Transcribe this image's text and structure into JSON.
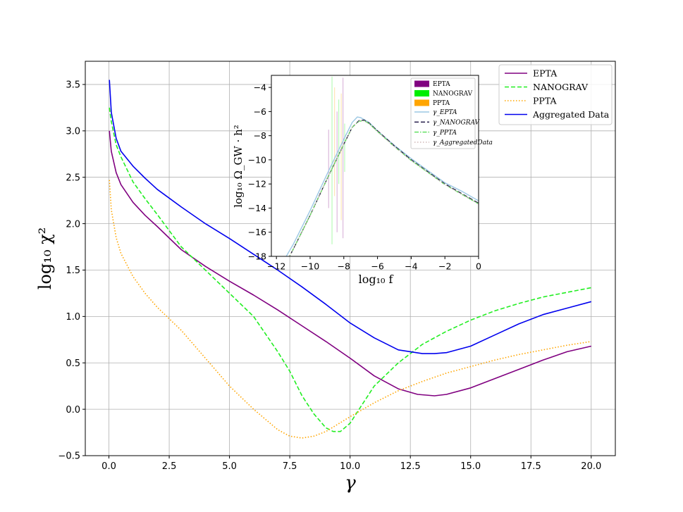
{
  "chart_data": [
    {
      "type": "line",
      "xlabel": "γ",
      "ylabel": "log₁₀ χ²",
      "xlim": [
        -0.98,
        21
      ],
      "ylim": [
        -0.5,
        3.75
      ],
      "xticks": [
        "0.0",
        "2.5",
        "5.0",
        "7.5",
        "10.0",
        "12.5",
        "15.0",
        "17.5",
        "20.0"
      ],
      "yticks": [
        "−0.5",
        "0.0",
        "0.5",
        "1.0",
        "1.5",
        "2.0",
        "2.5",
        "3.0",
        "3.5"
      ],
      "grid": true,
      "legend_position": "top-right",
      "series": [
        {
          "name": "EPTA",
          "color": "#800080",
          "dash": "solid",
          "x": [
            0.02,
            0.1,
            0.3,
            0.5,
            1,
            1.5,
            2,
            3,
            4,
            5,
            6,
            7,
            8,
            9,
            10,
            11,
            12,
            12.8,
            13.5,
            14,
            15,
            16,
            17,
            18,
            19,
            20
          ],
          "y": [
            3.0,
            2.78,
            2.55,
            2.42,
            2.23,
            2.09,
            1.97,
            1.72,
            1.54,
            1.38,
            1.23,
            1.07,
            0.9,
            0.73,
            0.55,
            0.36,
            0.22,
            0.16,
            0.145,
            0.16,
            0.23,
            0.33,
            0.43,
            0.53,
            0.62,
            0.68
          ]
        },
        {
          "name": "NANOGRAV",
          "color": "#22ee22",
          "dash": "dashed",
          "x": [
            0.02,
            0.1,
            0.3,
            0.5,
            1,
            1.5,
            2,
            3,
            4,
            5,
            6,
            7,
            7.5,
            8,
            8.5,
            9,
            9.3,
            9.6,
            10,
            10.5,
            11,
            12,
            13,
            14,
            15,
            16,
            17,
            18,
            19,
            20
          ],
          "y": [
            3.25,
            3.1,
            2.85,
            2.72,
            2.45,
            2.27,
            2.1,
            1.75,
            1.5,
            1.25,
            1.0,
            0.62,
            0.41,
            0.15,
            -0.05,
            -0.2,
            -0.24,
            -0.24,
            -0.15,
            0.05,
            0.25,
            0.5,
            0.7,
            0.84,
            0.96,
            1.06,
            1.14,
            1.21,
            1.26,
            1.31
          ]
        },
        {
          "name": "PPTA",
          "color": "#ffa500",
          "dash": "dotted",
          "x": [
            0.02,
            0.1,
            0.3,
            0.5,
            1,
            1.5,
            2,
            3,
            4,
            5,
            6,
            7,
            7.5,
            8,
            8.5,
            9,
            10,
            11,
            12,
            13,
            14,
            15,
            16,
            17,
            18,
            19,
            20
          ],
          "y": [
            2.47,
            2.15,
            1.85,
            1.68,
            1.43,
            1.25,
            1.1,
            0.85,
            0.55,
            0.25,
            0.0,
            -0.22,
            -0.29,
            -0.31,
            -0.29,
            -0.24,
            -0.08,
            0.07,
            0.2,
            0.3,
            0.39,
            0.46,
            0.53,
            0.59,
            0.64,
            0.69,
            0.73
          ]
        },
        {
          "name": "Aggregated Data",
          "color": "#0000ee",
          "dash": "solid",
          "x": [
            0.02,
            0.1,
            0.3,
            0.5,
            1,
            1.5,
            2,
            3,
            4,
            5,
            6,
            7,
            8,
            9,
            10,
            11,
            12,
            13,
            13.5,
            14,
            15,
            16,
            17,
            18,
            19,
            20
          ],
          "y": [
            3.55,
            3.2,
            2.92,
            2.78,
            2.62,
            2.49,
            2.37,
            2.18,
            2.0,
            1.84,
            1.67,
            1.5,
            1.32,
            1.13,
            0.93,
            0.77,
            0.64,
            0.6,
            0.6,
            0.61,
            0.68,
            0.8,
            0.92,
            1.02,
            1.09,
            1.16
          ]
        }
      ]
    },
    {
      "type": "line",
      "xlabel": "log₁₀ f",
      "ylabel": "log₁₀ Ω_GW · h²",
      "xlim": [
        -12.3,
        0
      ],
      "ylim": [
        -18,
        -3
      ],
      "xticks": [
        "−12",
        "−10",
        "−8",
        "−6",
        "−4",
        "−2",
        "0"
      ],
      "yticks": [
        "−18",
        "−16",
        "−14",
        "−12",
        "−10",
        "−8",
        "−6",
        "−4"
      ],
      "grid": false,
      "legend_position": "top-right",
      "bands": [
        {
          "name": "EPTA",
          "color": "#800080"
        },
        {
          "name": "NANOGRAV",
          "color": "#00ee00"
        },
        {
          "name": "PPTA",
          "color": "#ffa500"
        }
      ],
      "series": [
        {
          "name": "γ_EPTA",
          "color": "#9cc8e4",
          "dash": "solid",
          "x": [
            -11.5,
            -11,
            -10,
            -9,
            -8,
            -7.5,
            -7.2,
            -7,
            -6.5,
            -6,
            -5,
            -4,
            -3,
            -2,
            -1,
            0
          ],
          "y": [
            -18.2,
            -17.0,
            -14.2,
            -11.2,
            -8.3,
            -6.9,
            -6.45,
            -6.5,
            -6.9,
            -7.6,
            -8.8,
            -9.9,
            -10.9,
            -11.9,
            -12.6,
            -13.4
          ]
        },
        {
          "name": "γ_NANOGRAV",
          "color": "#1a1040",
          "dash": "dashed",
          "x": [
            -11.3,
            -11,
            -10,
            -9,
            -8,
            -7.5,
            -7.1,
            -6.8,
            -6.5,
            -6,
            -5,
            -4,
            -3,
            -2,
            -1,
            0
          ],
          "y": [
            -18.2,
            -17.4,
            -14.6,
            -11.6,
            -8.7,
            -7.3,
            -6.75,
            -6.7,
            -6.95,
            -7.6,
            -8.85,
            -10.0,
            -11.0,
            -12.0,
            -12.8,
            -13.6
          ]
        },
        {
          "name": "γ_PPTA",
          "color": "#55dd55",
          "dash": "dashdot",
          "x": [
            -11.3,
            -11,
            -10,
            -9,
            -8,
            -7.5,
            -7.1,
            -6.8,
            -6.5,
            -6,
            -5,
            -4,
            -3,
            -2,
            -1,
            0
          ],
          "y": [
            -18.2,
            -17.4,
            -14.6,
            -11.6,
            -8.7,
            -7.3,
            -6.8,
            -6.75,
            -7.0,
            -7.65,
            -8.9,
            -10.05,
            -11.05,
            -12.05,
            -12.85,
            -13.65
          ]
        },
        {
          "name": "γ_AggregatedData",
          "color": "#ccb0b0",
          "dash": "dotted",
          "x": [
            -11.3,
            -11,
            -10,
            -9,
            -8,
            -7.5,
            -7.1,
            -6.8,
            -6.5,
            -6,
            -5,
            -4,
            -3,
            -2,
            -1,
            0
          ],
          "y": [
            -18.2,
            -17.4,
            -14.6,
            -11.6,
            -8.7,
            -7.3,
            -6.8,
            -6.75,
            -7.0,
            -7.65,
            -8.9,
            -10.05,
            -11.05,
            -12.05,
            -12.85,
            -13.65
          ]
        }
      ]
    }
  ]
}
